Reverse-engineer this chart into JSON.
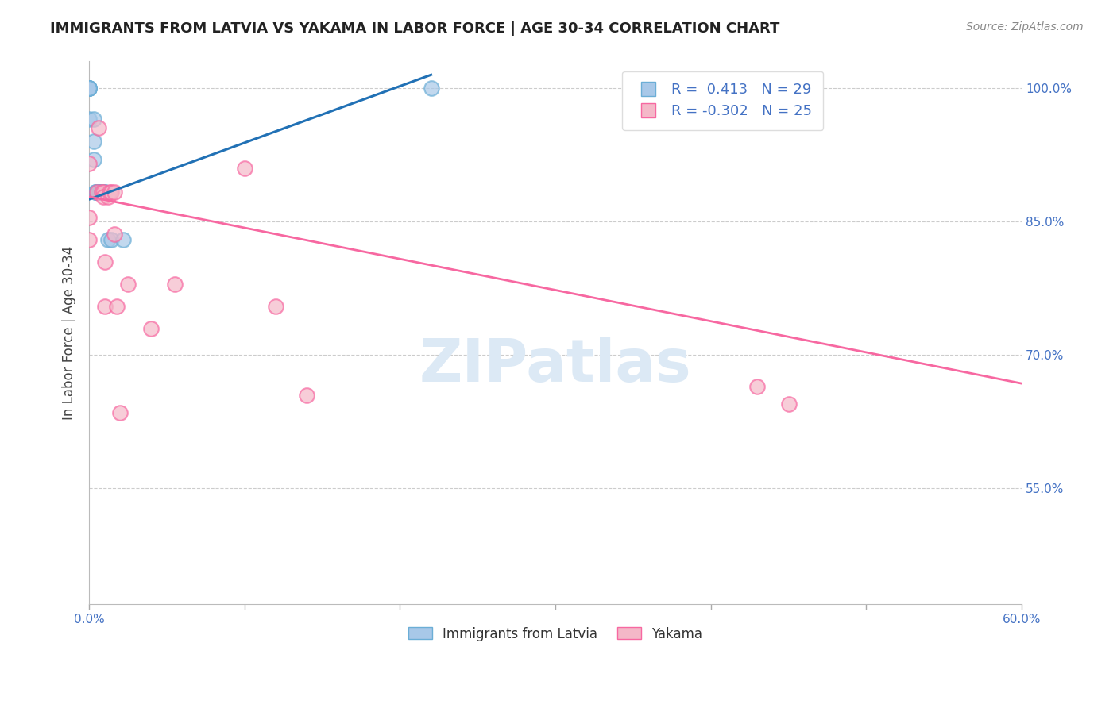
{
  "title": "IMMIGRANTS FROM LATVIA VS YAKAMA IN LABOR FORCE | AGE 30-34 CORRELATION CHART",
  "source": "Source: ZipAtlas.com",
  "ylabel": "In Labor Force | Age 30-34",
  "xlim": [
    0.0,
    0.6
  ],
  "ylim": [
    0.42,
    1.03
  ],
  "x_tick_positions": [
    0.0,
    0.1,
    0.2,
    0.3,
    0.4,
    0.5,
    0.6
  ],
  "x_tick_labels": [
    "0.0%",
    "",
    "",
    "",
    "",
    "",
    "60.0%"
  ],
  "y_tick_positions": [
    1.0,
    0.85,
    0.7,
    0.55
  ],
  "y_tick_labels": [
    "100.0%",
    "85.0%",
    "70.0%",
    "55.0%"
  ],
  "watermark": "ZIPatlas",
  "legend_r1": "R =  0.413   N = 29",
  "legend_r2": "R = -0.302   N = 25",
  "legend_bottom_labels": [
    "Immigrants from Latvia",
    "Yakama"
  ],
  "blue_scatter_x": [
    0.0,
    0.0,
    0.0,
    0.0,
    0.0,
    0.0,
    0.0,
    0.003,
    0.003,
    0.003,
    0.004,
    0.004,
    0.005,
    0.005,
    0.006,
    0.006,
    0.006,
    0.007,
    0.007,
    0.007,
    0.008,
    0.008,
    0.009,
    0.01,
    0.01,
    0.012,
    0.014,
    0.022,
    0.22
  ],
  "blue_scatter_y": [
    1.0,
    1.0,
    1.0,
    1.0,
    1.0,
    1.0,
    0.965,
    0.965,
    0.94,
    0.92,
    0.883,
    0.883,
    0.883,
    0.883,
    0.883,
    0.883,
    0.883,
    0.883,
    0.883,
    0.883,
    0.883,
    0.883,
    0.883,
    0.883,
    0.883,
    0.83,
    0.83,
    0.83,
    1.0
  ],
  "pink_scatter_x": [
    0.0,
    0.0,
    0.0,
    0.005,
    0.006,
    0.008,
    0.009,
    0.009,
    0.01,
    0.01,
    0.012,
    0.013,
    0.014,
    0.016,
    0.016,
    0.018,
    0.02,
    0.025,
    0.04,
    0.055,
    0.1,
    0.12,
    0.14,
    0.43,
    0.45
  ],
  "pink_scatter_y": [
    0.915,
    0.855,
    0.83,
    0.883,
    0.955,
    0.883,
    0.883,
    0.878,
    0.805,
    0.755,
    0.878,
    0.883,
    0.883,
    0.883,
    0.836,
    0.755,
    0.635,
    0.78,
    0.73,
    0.78,
    0.91,
    0.755,
    0.655,
    0.665,
    0.645
  ],
  "blue_line_x": [
    0.0,
    0.22
  ],
  "blue_line_y": [
    0.875,
    1.015
  ],
  "pink_line_x": [
    0.0,
    0.6
  ],
  "pink_line_y": [
    0.878,
    0.668
  ],
  "blue_color": "#a8c8e8",
  "blue_edge_color": "#6baed6",
  "blue_line_color": "#2171b5",
  "pink_color": "#f4b8c8",
  "pink_edge_color": "#f768a1",
  "pink_line_color": "#f768a1",
  "grid_color": "#cccccc",
  "background_color": "#ffffff",
  "title_color": "#222222",
  "axis_label_color": "#444444",
  "tick_color": "#4472C4",
  "source_color": "#888888",
  "watermark_color": "#dce9f5"
}
